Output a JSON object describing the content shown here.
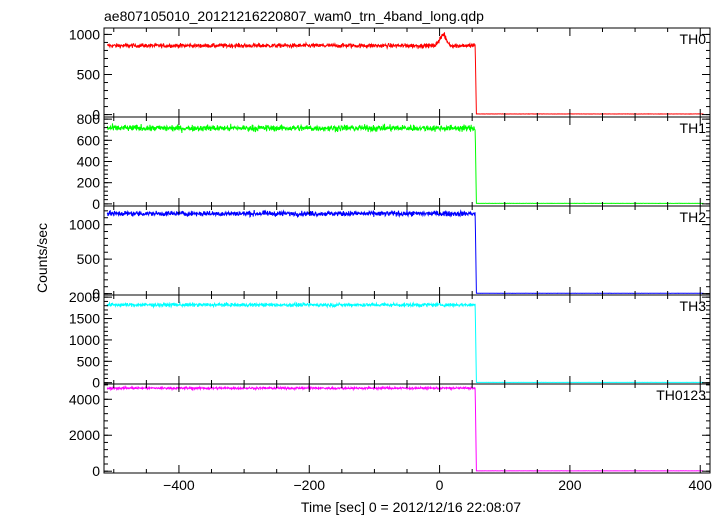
{
  "chart_data": {
    "type": "line",
    "title": "ae807105010_20121216220807_wam0_trn_4band_long.qdp",
    "xlabel": "Time [sec] 0 = 2012/12/16 22:08:07",
    "ylabel": "Counts/sec",
    "xlim": [
      -515,
      415
    ],
    "x_ticks": [
      -400,
      -200,
      0,
      200,
      400
    ],
    "x_tick_labels": [
      "−400",
      "−200",
      "0",
      "200",
      "400"
    ],
    "drop_time": 55,
    "grid": false,
    "panels": [
      {
        "name": "TH0",
        "color": "#ff0000",
        "ylim": [
          -30,
          1080
        ],
        "yticks": [
          0,
          500,
          1000
        ],
        "ytick_labels": [
          "0",
          "500",
          "1000"
        ],
        "level": 860,
        "noise": 25,
        "after": 8,
        "features": [
          {
            "t": 5,
            "width": 10,
            "height": 160
          }
        ]
      },
      {
        "name": "TH1",
        "color": "#00ff00",
        "ylim": [
          -20,
          820
        ],
        "yticks": [
          0,
          200,
          400,
          600,
          800
        ],
        "ytick_labels": [
          "0",
          "200",
          "400",
          "600",
          "800"
        ],
        "level": 715,
        "noise": 28,
        "after": 5,
        "features": []
      },
      {
        "name": "TH2",
        "color": "#0000ff",
        "ylim": [
          -20,
          1270
        ],
        "yticks": [
          0,
          500,
          1000
        ],
        "ytick_labels": [
          "0",
          "500",
          "1000"
        ],
        "level": 1160,
        "noise": 35,
        "after": 5,
        "features": []
      },
      {
        "name": "TH3",
        "color": "#00ffff",
        "ylim": [
          -30,
          2050
        ],
        "yticks": [
          0,
          500,
          1000,
          1500,
          2000
        ],
        "ytick_labels": [
          "0",
          "500",
          "1000",
          "1500",
          "2000"
        ],
        "level": 1820,
        "noise": 40,
        "after": 8,
        "features": []
      },
      {
        "name": "TH0123",
        "color": "#ff00ff",
        "ylim": [
          -100,
          4850
        ],
        "yticks": [
          0,
          2000,
          4000
        ],
        "ytick_labels": [
          "0",
          "2000",
          "4000"
        ],
        "level": 4620,
        "noise": 60,
        "after": 20,
        "features": []
      }
    ]
  }
}
